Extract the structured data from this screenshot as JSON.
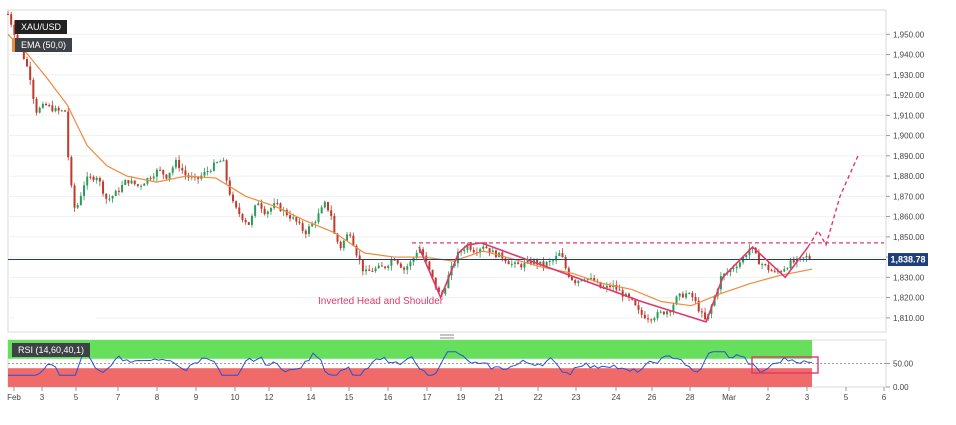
{
  "chart_data": [
    {
      "type": "candlestick",
      "symbol": "XAU/USD",
      "overlay": "EMA (50,0)",
      "annotation": "Inverted Head and Shoulder",
      "last_price": "1,838.78",
      "ylim": [
        1803,
        1962
      ],
      "y_ticks": [
        "1,810.00",
        "1,820.00",
        "1,830.00",
        "1,840.00",
        "1,850.00",
        "1,860.00",
        "1,870.00",
        "1,880.00",
        "1,890.00",
        "1,900.00",
        "1,910.00",
        "1,920.00",
        "1,930.00",
        "1,940.00",
        "1,950.00"
      ],
      "x_ticks": [
        "Feb",
        "3",
        "5",
        "7",
        "8",
        "9",
        "10",
        "12",
        "14",
        "15",
        "16",
        "17",
        "19",
        "21",
        "22",
        "23",
        "24",
        "26",
        "28",
        "Mar",
        "2",
        "3",
        "5",
        "6"
      ],
      "neckline": 1847,
      "ohlc_key_points": [
        [
          0,
          1960
        ],
        [
          10,
          1946
        ],
        [
          15,
          1940
        ],
        [
          22,
          1930
        ],
        [
          28,
          1912
        ],
        [
          38,
          1915
        ],
        [
          50,
          1912
        ],
        [
          58,
          1912
        ],
        [
          62,
          1880
        ],
        [
          68,
          1862
        ],
        [
          78,
          1878
        ],
        [
          90,
          1880
        ],
        [
          100,
          1868
        ],
        [
          110,
          1872
        ],
        [
          120,
          1878
        ],
        [
          132,
          1875
        ],
        [
          144,
          1880
        ],
        [
          152,
          1883
        ],
        [
          160,
          1880
        ],
        [
          170,
          1887
        ],
        [
          180,
          1880
        ],
        [
          190,
          1878
        ],
        [
          200,
          1882
        ],
        [
          210,
          1886
        ],
        [
          217,
          1888
        ],
        [
          222,
          1875
        ],
        [
          228,
          1865
        ],
        [
          236,
          1860
        ],
        [
          244,
          1856
        ],
        [
          252,
          1868
        ],
        [
          260,
          1862
        ],
        [
          270,
          1866
        ],
        [
          280,
          1862
        ],
        [
          290,
          1858
        ],
        [
          300,
          1852
        ],
        [
          310,
          1858
        ],
        [
          320,
          1866
        ],
        [
          326,
          1862
        ],
        [
          330,
          1850
        ],
        [
          336,
          1845
        ],
        [
          345,
          1853
        ],
        [
          352,
          1842
        ],
        [
          360,
          1832
        ],
        [
          370,
          1834
        ],
        [
          380,
          1835
        ],
        [
          390,
          1840
        ],
        [
          400,
          1834
        ],
        [
          408,
          1838
        ],
        [
          415,
          1845
        ],
        [
          420,
          1840
        ],
        [
          428,
          1830
        ],
        [
          437,
          1820
        ],
        [
          446,
          1832
        ],
        [
          455,
          1842
        ],
        [
          464,
          1846
        ],
        [
          472,
          1843
        ],
        [
          480,
          1846
        ],
        [
          490,
          1842
        ],
        [
          500,
          1840
        ],
        [
          510,
          1836
        ],
        [
          520,
          1836
        ],
        [
          530,
          1838
        ],
        [
          540,
          1836
        ],
        [
          550,
          1838
        ],
        [
          558,
          1842
        ],
        [
          565,
          1832
        ],
        [
          572,
          1828
        ],
        [
          582,
          1830
        ],
        [
          592,
          1828
        ],
        [
          600,
          1824
        ],
        [
          610,
          1826
        ],
        [
          620,
          1822
        ],
        [
          630,
          1818
        ],
        [
          638,
          1812
        ],
        [
          648,
          1810
        ],
        [
          658,
          1812
        ],
        [
          668,
          1814
        ],
        [
          676,
          1820
        ],
        [
          684,
          1822
        ],
        [
          692,
          1820
        ],
        [
          700,
          1812
        ],
        [
          705,
          1808
        ],
        [
          712,
          1818
        ],
        [
          720,
          1830
        ],
        [
          730,
          1834
        ],
        [
          740,
          1838
        ],
        [
          750,
          1845
        ],
        [
          758,
          1838
        ],
        [
          766,
          1835
        ],
        [
          774,
          1832
        ],
        [
          782,
          1834
        ],
        [
          790,
          1837
        ],
        [
          798,
          1838
        ],
        [
          806,
          1840
        ],
        [
          812,
          1839
        ]
      ],
      "ema_key_points": [
        [
          0,
          1950
        ],
        [
          20,
          1940
        ],
        [
          40,
          1928
        ],
        [
          60,
          1915
        ],
        [
          80,
          1895
        ],
        [
          100,
          1885
        ],
        [
          120,
          1880
        ],
        [
          150,
          1877
        ],
        [
          180,
          1880
        ],
        [
          210,
          1879
        ],
        [
          240,
          1870
        ],
        [
          270,
          1865
        ],
        [
          300,
          1858
        ],
        [
          330,
          1852
        ],
        [
          360,
          1842
        ],
        [
          390,
          1840
        ],
        [
          420,
          1840
        ],
        [
          450,
          1838
        ],
        [
          480,
          1843
        ],
        [
          510,
          1839
        ],
        [
          540,
          1835
        ],
        [
          570,
          1832
        ],
        [
          600,
          1827
        ],
        [
          630,
          1824
        ],
        [
          660,
          1818
        ],
        [
          690,
          1816
        ],
        [
          720,
          1822
        ],
        [
          750,
          1827
        ],
        [
          780,
          1831
        ],
        [
          812,
          1834
        ]
      ],
      "pattern_lines": [
        [
          [
            415,
            1845
          ],
          [
            437,
            1820
          ],
          [
            455,
            1842
          ],
          [
            464,
            1846
          ],
          [
            478,
            1847
          ],
          [
            640,
            1818
          ],
          [
            705,
            1808
          ],
          [
            722,
            1830
          ],
          [
            752,
            1845
          ],
          [
            785,
            1830
          ],
          [
            808,
            1845
          ]
        ]
      ],
      "projection": [
        [
          808,
          1845
        ],
        [
          818,
          1853
        ],
        [
          826,
          1846
        ],
        [
          840,
          1870
        ],
        [
          858,
          1890
        ]
      ]
    },
    {
      "type": "line",
      "name": "RSI (14,60,40,1)",
      "ylim": [
        0,
        100
      ],
      "y_ticks": [
        "0.00",
        "50.00"
      ],
      "upper_band": 60,
      "lower_band": 40,
      "colors": {
        "line": "#2b4fd6",
        "upper": "#66e05c",
        "lower": "#f06a6a"
      }
    }
  ]
}
